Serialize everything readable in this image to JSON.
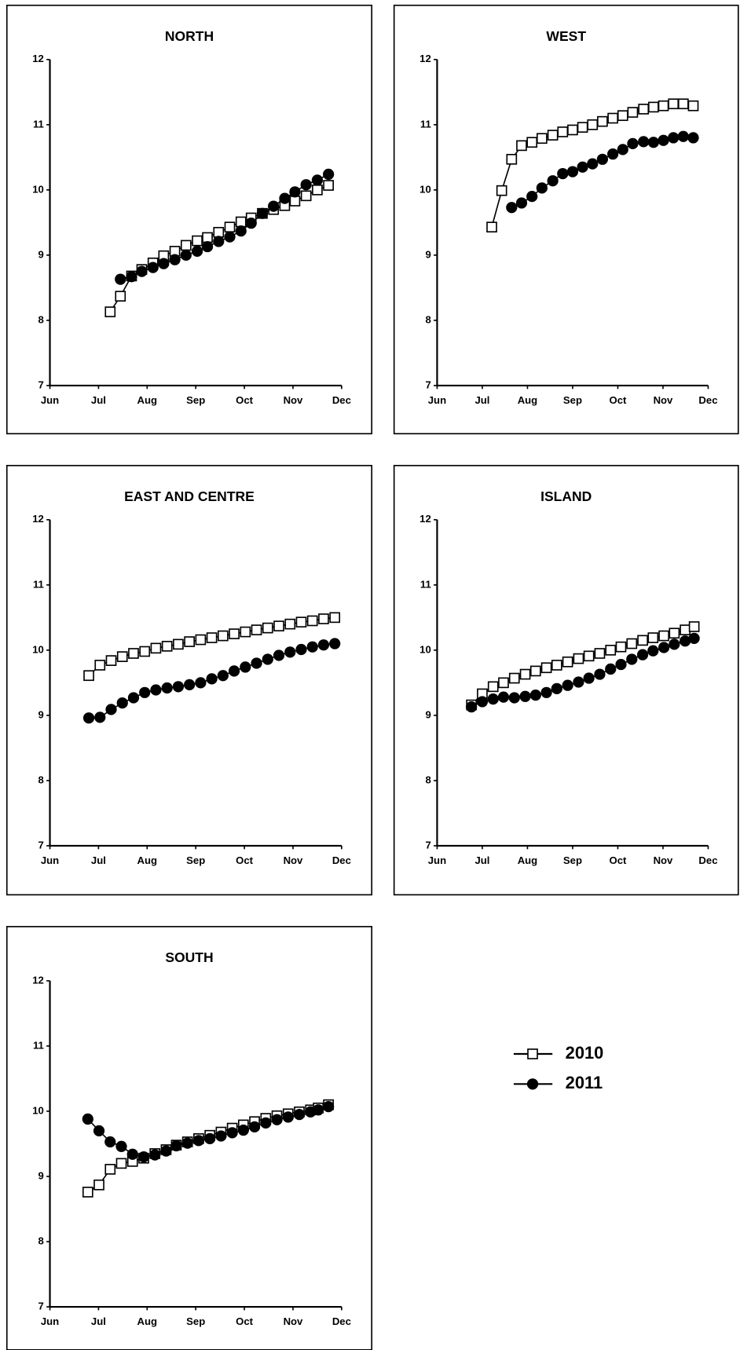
{
  "chart_data": [
    {
      "type": "line",
      "title": "NORTH",
      "xlim": [
        0,
        6
      ],
      "ylim": [
        7,
        12
      ],
      "xticks": [
        {
          "value": 0,
          "label": "Jun"
        },
        {
          "value": 1,
          "label": "Jul"
        },
        {
          "value": 2,
          "label": "Aug"
        },
        {
          "value": 3,
          "label": "Sep"
        },
        {
          "value": 4,
          "label": "Oct"
        },
        {
          "value": 5,
          "label": "Nov"
        },
        {
          "value": 6,
          "label": "Dec"
        }
      ],
      "yticks": [
        7,
        8,
        9,
        10,
        11,
        12
      ],
      "series": [
        {
          "name": "2010",
          "color": "#000000",
          "marker": "square",
          "x": [
            1.24,
            1.45,
            1.68,
            1.89,
            2.12,
            2.34,
            2.57,
            2.8,
            3.03,
            3.24,
            3.47,
            3.7,
            3.93,
            4.14,
            4.37,
            4.6,
            4.83,
            5.04,
            5.27,
            5.5,
            5.73
          ],
          "values": [
            8.13,
            8.37,
            8.68,
            8.78,
            8.88,
            8.99,
            9.06,
            9.15,
            9.22,
            9.27,
            9.35,
            9.43,
            9.51,
            9.57,
            9.64,
            9.7,
            9.76,
            9.83,
            9.91,
            10.0,
            10.07
          ]
        },
        {
          "name": "2011",
          "color": "#000000",
          "marker": "circle",
          "x": [
            1.45,
            1.68,
            1.89,
            2.12,
            2.34,
            2.57,
            2.8,
            3.03,
            3.24,
            3.47,
            3.7,
            3.93,
            4.14,
            4.37,
            4.6,
            4.83,
            5.04,
            5.27,
            5.5,
            5.73
          ],
          "values": [
            8.63,
            8.67,
            8.75,
            8.81,
            8.87,
            8.93,
            9.0,
            9.06,
            9.13,
            9.21,
            9.28,
            9.37,
            9.49,
            9.64,
            9.75,
            9.87,
            9.97,
            10.08,
            10.15,
            10.24
          ]
        }
      ]
    },
    {
      "type": "line",
      "title": "WEST",
      "xlim": [
        0,
        6
      ],
      "ylim": [
        7,
        12
      ],
      "xticks": [
        {
          "value": 0,
          "label": "Jun"
        },
        {
          "value": 1,
          "label": "Jul"
        },
        {
          "value": 2,
          "label": "Aug"
        },
        {
          "value": 3,
          "label": "Sep"
        },
        {
          "value": 4,
          "label": "Oct"
        },
        {
          "value": 5,
          "label": "Nov"
        },
        {
          "value": 6,
          "label": "Dec"
        }
      ],
      "yticks": [
        7,
        8,
        9,
        10,
        11,
        12
      ],
      "series": [
        {
          "name": "2010",
          "color": "#000000",
          "marker": "square",
          "x": [
            1.21,
            1.43,
            1.65,
            1.87,
            2.1,
            2.32,
            2.56,
            2.78,
            3.0,
            3.22,
            3.44,
            3.66,
            3.89,
            4.11,
            4.33,
            4.57,
            4.79,
            5.01,
            5.23,
            5.45,
            5.67
          ],
          "values": [
            9.43,
            9.99,
            10.47,
            10.68,
            10.73,
            10.79,
            10.84,
            10.89,
            10.92,
            10.96,
            11.0,
            11.05,
            11.1,
            11.14,
            11.19,
            11.24,
            11.27,
            11.29,
            11.32,
            11.32,
            11.29
          ]
        },
        {
          "name": "2011",
          "color": "#000000",
          "marker": "circle",
          "x": [
            1.65,
            1.87,
            2.1,
            2.32,
            2.56,
            2.78,
            3.0,
            3.22,
            3.44,
            3.66,
            3.89,
            4.11,
            4.33,
            4.57,
            4.79,
            5.01,
            5.23,
            5.45,
            5.67
          ],
          "values": [
            9.73,
            9.8,
            9.9,
            10.03,
            10.14,
            10.25,
            10.28,
            10.35,
            10.4,
            10.47,
            10.55,
            10.62,
            10.71,
            10.74,
            10.73,
            10.76,
            10.8,
            10.82,
            10.8
          ]
        }
      ]
    },
    {
      "type": "line",
      "title": "EAST AND CENTRE",
      "xlim": [
        0,
        6
      ],
      "ylim": [
        7,
        12
      ],
      "xticks": [
        {
          "value": 0,
          "label": "Jun"
        },
        {
          "value": 1,
          "label": "Jul"
        },
        {
          "value": 2,
          "label": "Aug"
        },
        {
          "value": 3,
          "label": "Sep"
        },
        {
          "value": 4,
          "label": "Oct"
        },
        {
          "value": 5,
          "label": "Nov"
        },
        {
          "value": 6,
          "label": "Dec"
        }
      ],
      "yticks": [
        7,
        8,
        9,
        10,
        11,
        12
      ],
      "series": [
        {
          "name": "2010",
          "color": "#000000",
          "marker": "square",
          "x": [
            0.8,
            1.03,
            1.26,
            1.49,
            1.72,
            1.95,
            2.18,
            2.41,
            2.64,
            2.87,
            3.1,
            3.33,
            3.56,
            3.79,
            4.02,
            4.25,
            4.48,
            4.71,
            4.94,
            5.17,
            5.4,
            5.63,
            5.86
          ],
          "values": [
            9.61,
            9.77,
            9.84,
            9.9,
            9.95,
            9.98,
            10.03,
            10.06,
            10.09,
            10.13,
            10.16,
            10.19,
            10.22,
            10.25,
            10.28,
            10.31,
            10.34,
            10.37,
            10.4,
            10.43,
            10.45,
            10.48,
            10.5
          ]
        },
        {
          "name": "2011",
          "color": "#000000",
          "marker": "circle",
          "x": [
            0.8,
            1.03,
            1.26,
            1.49,
            1.72,
            1.95,
            2.18,
            2.41,
            2.64,
            2.87,
            3.1,
            3.33,
            3.56,
            3.79,
            4.02,
            4.25,
            4.48,
            4.71,
            4.94,
            5.17,
            5.4,
            5.63,
            5.86
          ],
          "values": [
            8.96,
            8.97,
            9.09,
            9.19,
            9.27,
            9.35,
            9.39,
            9.42,
            9.44,
            9.47,
            9.5,
            9.56,
            9.61,
            9.68,
            9.74,
            9.8,
            9.86,
            9.92,
            9.97,
            10.01,
            10.05,
            10.08,
            10.1
          ]
        }
      ]
    },
    {
      "type": "line",
      "title": "ISLAND",
      "xlim": [
        0,
        6
      ],
      "ylim": [
        7,
        12
      ],
      "xticks": [
        {
          "value": 0,
          "label": "Jun"
        },
        {
          "value": 1,
          "label": "Jul"
        },
        {
          "value": 2,
          "label": "Aug"
        },
        {
          "value": 3,
          "label": "Sep"
        },
        {
          "value": 4,
          "label": "Oct"
        },
        {
          "value": 5,
          "label": "Nov"
        },
        {
          "value": 6,
          "label": "Dec"
        }
      ],
      "yticks": [
        7,
        8,
        9,
        10,
        11,
        12
      ],
      "series": [
        {
          "name": "2010",
          "color": "#000000",
          "marker": "square",
          "x": [
            0.76,
            1.0,
            1.24,
            1.47,
            1.71,
            1.95,
            2.18,
            2.42,
            2.65,
            2.89,
            3.13,
            3.36,
            3.6,
            3.84,
            4.07,
            4.31,
            4.55,
            4.78,
            5.02,
            5.25,
            5.49,
            5.69
          ],
          "values": [
            9.16,
            9.33,
            9.44,
            9.5,
            9.57,
            9.63,
            9.68,
            9.73,
            9.77,
            9.82,
            9.87,
            9.91,
            9.95,
            10.0,
            10.05,
            10.1,
            10.15,
            10.19,
            10.22,
            10.26,
            10.31,
            10.36
          ]
        },
        {
          "name": "2011",
          "color": "#000000",
          "marker": "circle",
          "x": [
            0.76,
            1.0,
            1.24,
            1.47,
            1.71,
            1.95,
            2.18,
            2.42,
            2.65,
            2.89,
            3.13,
            3.36,
            3.6,
            3.84,
            4.07,
            4.31,
            4.55,
            4.78,
            5.02,
            5.25,
            5.49,
            5.69
          ],
          "values": [
            9.13,
            9.21,
            9.25,
            9.28,
            9.27,
            9.29,
            9.31,
            9.35,
            9.41,
            9.46,
            9.51,
            9.57,
            9.63,
            9.71,
            9.78,
            9.86,
            9.93,
            9.99,
            10.04,
            10.09,
            10.14,
            10.18
          ]
        }
      ]
    },
    {
      "type": "line",
      "title": "SOUTH",
      "xlim": [
        0,
        6
      ],
      "ylim": [
        7,
        12
      ],
      "xticks": [
        {
          "value": 0,
          "label": "Jun"
        },
        {
          "value": 1,
          "label": "Jul"
        },
        {
          "value": 2,
          "label": "Aug"
        },
        {
          "value": 3,
          "label": "Sep"
        },
        {
          "value": 4,
          "label": "Oct"
        },
        {
          "value": 5,
          "label": "Nov"
        },
        {
          "value": 6,
          "label": "Dec"
        }
      ],
      "yticks": [
        7,
        8,
        9,
        10,
        11,
        12
      ],
      "series": [
        {
          "name": "2010",
          "color": "#000000",
          "marker": "square",
          "x": [
            0.78,
            1.01,
            1.24,
            1.47,
            1.7,
            1.93,
            2.16,
            2.39,
            2.6,
            2.83,
            3.06,
            3.29,
            3.52,
            3.75,
            3.98,
            4.21,
            4.44,
            4.67,
            4.9,
            5.13,
            5.36,
            5.52,
            5.73
          ],
          "values": [
            8.76,
            8.87,
            9.11,
            9.2,
            9.23,
            9.28,
            9.35,
            9.41,
            9.48,
            9.53,
            9.58,
            9.63,
            9.68,
            9.74,
            9.79,
            9.84,
            9.89,
            9.93,
            9.96,
            9.99,
            10.02,
            10.05,
            10.1
          ]
        },
        {
          "name": "2011",
          "color": "#000000",
          "marker": "circle",
          "x": [
            0.78,
            1.01,
            1.24,
            1.47,
            1.7,
            1.93,
            2.16,
            2.39,
            2.6,
            2.83,
            3.06,
            3.29,
            3.52,
            3.75,
            3.98,
            4.21,
            4.44,
            4.67,
            4.9,
            5.13,
            5.36,
            5.52,
            5.73
          ],
          "values": [
            9.88,
            9.7,
            9.53,
            9.46,
            9.34,
            9.3,
            9.33,
            9.39,
            9.47,
            9.51,
            9.55,
            9.58,
            9.62,
            9.67,
            9.71,
            9.76,
            9.82,
            9.87,
            9.91,
            9.95,
            9.99,
            10.02,
            10.07
          ]
        }
      ]
    }
  ]
}
